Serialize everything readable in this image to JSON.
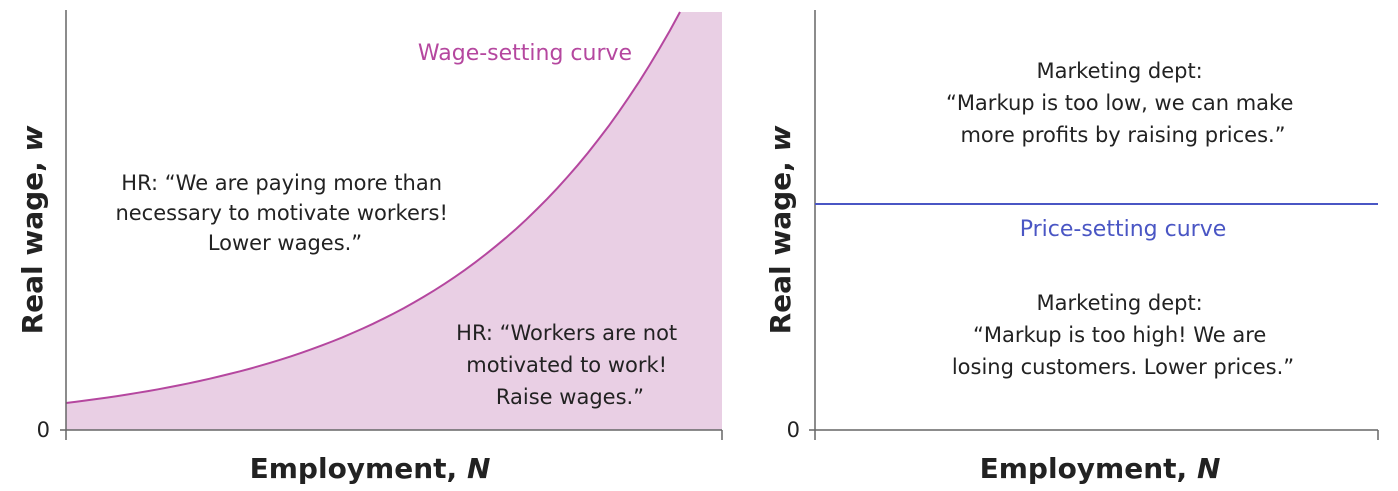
{
  "panels": [
    {
      "y_axis_label": "Real wage, ",
      "y_axis_variable": "w",
      "x_axis_label": "Employment, ",
      "x_axis_variable": "N",
      "origin_label": "0",
      "curve_label": "Wage-setting curve",
      "annotations": [
        {
          "lines": [
            "HR: “We are paying more than",
            "necessary to motivate workers!",
            "Lower wages.”"
          ]
        },
        {
          "lines": [
            "HR: “Workers are not",
            "motivated to work!",
            "Raise wages.”"
          ]
        }
      ]
    },
    {
      "y_axis_label": "Real wage, ",
      "y_axis_variable": "w",
      "x_axis_label": "Employment, ",
      "x_axis_variable": "N",
      "origin_label": "0",
      "curve_label": "Price-setting curve",
      "annotations": [
        {
          "lines": [
            "Marketing dept:",
            "“Markup is too low, we can make",
            "more profits by raising prices.”"
          ]
        },
        {
          "lines": [
            "Marketing dept:",
            "“Markup is too high! We are",
            "losing customers. Lower prices.”"
          ]
        }
      ]
    }
  ]
}
